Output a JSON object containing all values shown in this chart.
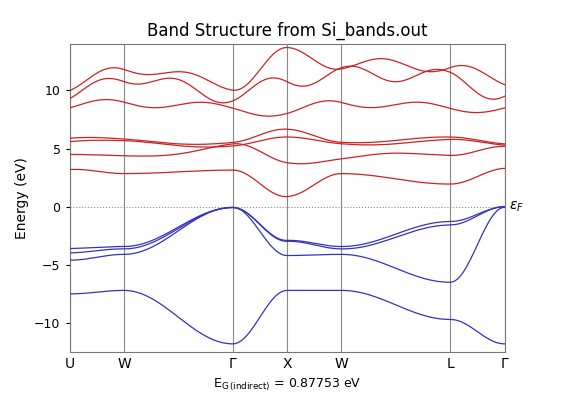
{
  "title": "Band Structure from Si_bands.out",
  "ylabel": "Energy (eV)",
  "fermi_label": "ε_F",
  "kpoint_labels": [
    "U",
    "W",
    "Γ",
    "X",
    "W",
    "L",
    "Γ"
  ],
  "kpoint_positions": [
    0,
    1,
    3,
    4,
    5,
    7,
    8
  ],
  "ylim": [
    -12.5,
    14.0
  ],
  "yticks": [
    -10,
    -5,
    0,
    5,
    10
  ],
  "bg_color": "white",
  "plot_bg": "white",
  "line_color_valence": "#3333bb",
  "line_color_conduction": "#cc2222",
  "fermi_color": "#888888",
  "vline_color": "#888888",
  "linewidth": 0.9,
  "figsize": [
    5.8,
    4.0
  ],
  "dpi": 100,
  "npts": [
    25,
    50,
    25,
    25,
    50,
    25
  ],
  "seg_lengths": [
    1,
    2,
    1,
    1,
    2,
    1
  ],
  "vb_hs": [
    [
      -7.5,
      -7.2,
      -11.8,
      -7.2,
      -7.2,
      -9.7,
      -11.8
    ],
    [
      -3.6,
      -3.5,
      0.0,
      -2.9,
      -3.5,
      -1.2,
      0.0
    ],
    [
      -4.0,
      -3.7,
      0.0,
      -3.0,
      -3.7,
      -1.5,
      0.0
    ],
    [
      -4.6,
      -4.1,
      -0.05,
      -4.2,
      -4.1,
      -6.5,
      -0.05
    ]
  ],
  "cb_hs": [
    [
      3.2,
      2.7,
      3.3,
      0.87,
      2.7,
      2.1,
      3.3
    ],
    [
      4.5,
      4.3,
      5.2,
      3.8,
      4.3,
      4.5,
      5.2
    ],
    [
      5.6,
      5.5,
      5.3,
      5.8,
      5.5,
      5.6,
      5.3
    ],
    [
      5.8,
      5.7,
      5.5,
      6.5,
      5.7,
      5.8,
      5.5
    ],
    [
      8.5,
      9.0,
      8.5,
      8.0,
      9.0,
      8.5,
      8.5
    ],
    [
      9.3,
      11.2,
      9.5,
      10.8,
      11.5,
      11.2,
      9.5
    ],
    [
      10.0,
      12.0,
      10.5,
      13.2,
      12.3,
      12.1,
      10.5
    ]
  ]
}
